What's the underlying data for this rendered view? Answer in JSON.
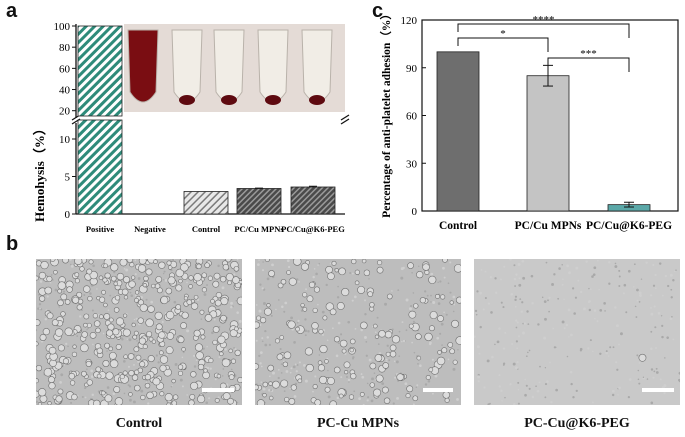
{
  "panels": {
    "a": "a",
    "b": "b",
    "c": "c"
  },
  "chart_data": [
    {
      "type": "bar",
      "ylabel": "Hemohysis（%）",
      "categories": [
        "Positive",
        "Negative",
        "Control",
        "PC/Cu MPNs",
        "PC/Cu@K6-PEG"
      ],
      "values": [
        100,
        0,
        3.0,
        3.4,
        3.6
      ],
      "errors": [
        0,
        0,
        0,
        0.05,
        0.1
      ],
      "yticks_upper": [
        "20",
        "40",
        "60",
        "80",
        "100"
      ],
      "yticks_lower": [
        "0",
        "5",
        "10"
      ],
      "broken_axis": true,
      "ylim_lower": [
        0,
        12
      ],
      "ylim_upper": [
        15,
        100
      ],
      "pattern": "diagonal-hatch",
      "bar_colors": [
        "#2e8b7a",
        "#2e8b7a",
        "#c8c8c8",
        "#6e6e6e",
        "#6e6e6e"
      ]
    },
    {
      "type": "bar",
      "ylabel": "Percentage of anti-platelet adhesion（%）",
      "categories": [
        "Control",
        "PC/Cu MPNs",
        "PC/Cu@K6-PEG"
      ],
      "values": [
        100,
        85,
        4
      ],
      "errors": [
        0,
        6.5,
        1.5
      ],
      "ylim": [
        0,
        120
      ],
      "yticks": [
        "0",
        "30",
        "60",
        "90",
        "120"
      ],
      "bar_colors": [
        "#6e6e6e",
        "#c4c4c4",
        "#5ba8a8"
      ],
      "significance": [
        {
          "from": 0,
          "to": 1,
          "label": "*"
        },
        {
          "from": 0,
          "to": 2,
          "label": "****"
        },
        {
          "from": 1,
          "to": 2,
          "label": "***"
        }
      ]
    }
  ],
  "sem_images": [
    {
      "caption": "Control",
      "density": 420
    },
    {
      "caption": "PC-Cu MPNs",
      "density": 170
    },
    {
      "caption": "PC-Cu@K6-PEG",
      "density": 1
    }
  ]
}
